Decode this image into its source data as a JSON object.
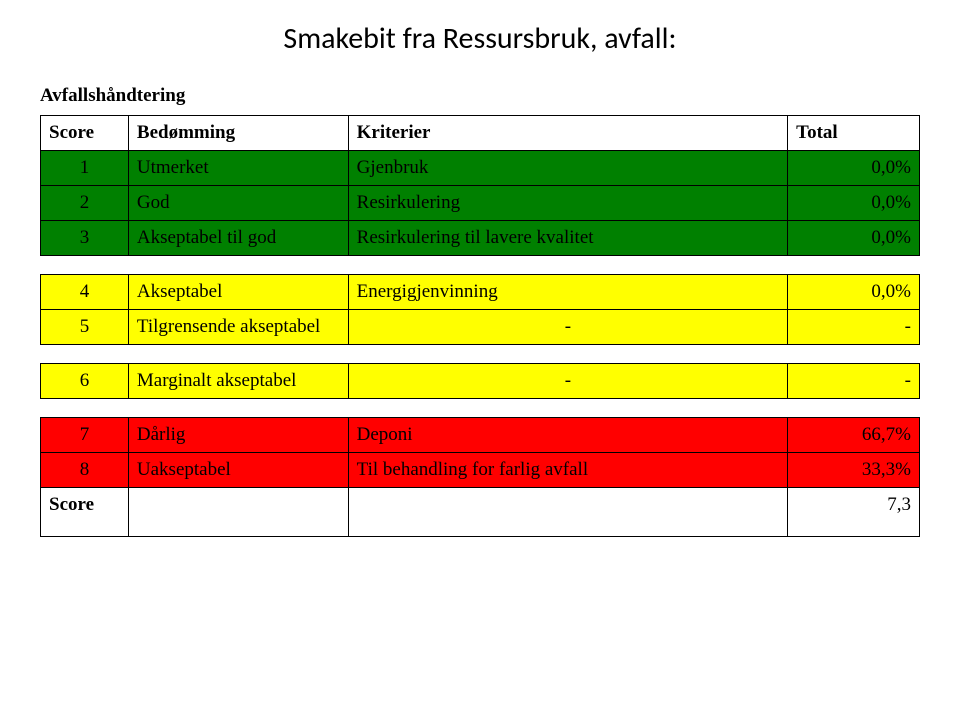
{
  "title": "Smakebit fra Ressursbruk, avfall:",
  "section_title": "Avfallshåndtering",
  "headers": {
    "score": "Score",
    "rating": "Bedømming",
    "criteria": "Kriterier",
    "total": "Total"
  },
  "colors": {
    "green": "#008000",
    "yellow": "#ffff00",
    "red": "#ff0000",
    "border": "#000000",
    "background": "#ffffff"
  },
  "rows": {
    "r1": {
      "num": "1",
      "rating": "Utmerket",
      "criteria": "Gjenbruk",
      "total": "0,0%"
    },
    "r2": {
      "num": "2",
      "rating": "God",
      "criteria": "Resirkulering",
      "total": "0,0%"
    },
    "r3": {
      "num": "3",
      "rating": "Akseptabel til god",
      "criteria": "Resirkulering til lavere kvalitet",
      "total": "0,0%"
    },
    "r4": {
      "num": "4",
      "rating": "Akseptabel",
      "criteria": "Energigjenvinning",
      "total": "0,0%"
    },
    "r5": {
      "num": "5",
      "rating": "Tilgrensende akseptabel",
      "criteria": "-",
      "total": "-"
    },
    "r6": {
      "num": "6",
      "rating": "Marginalt akseptabel",
      "criteria": "-",
      "total": "-"
    },
    "r7": {
      "num": "7",
      "rating": "Dårlig",
      "criteria": "Deponi",
      "total": "66,7%"
    },
    "r8": {
      "num": "8",
      "rating": "Uakseptabel",
      "criteria": "Til behandling for farlig avfall",
      "total": "33,3%"
    }
  },
  "score_row": {
    "label": "Score",
    "value": "7,3"
  }
}
